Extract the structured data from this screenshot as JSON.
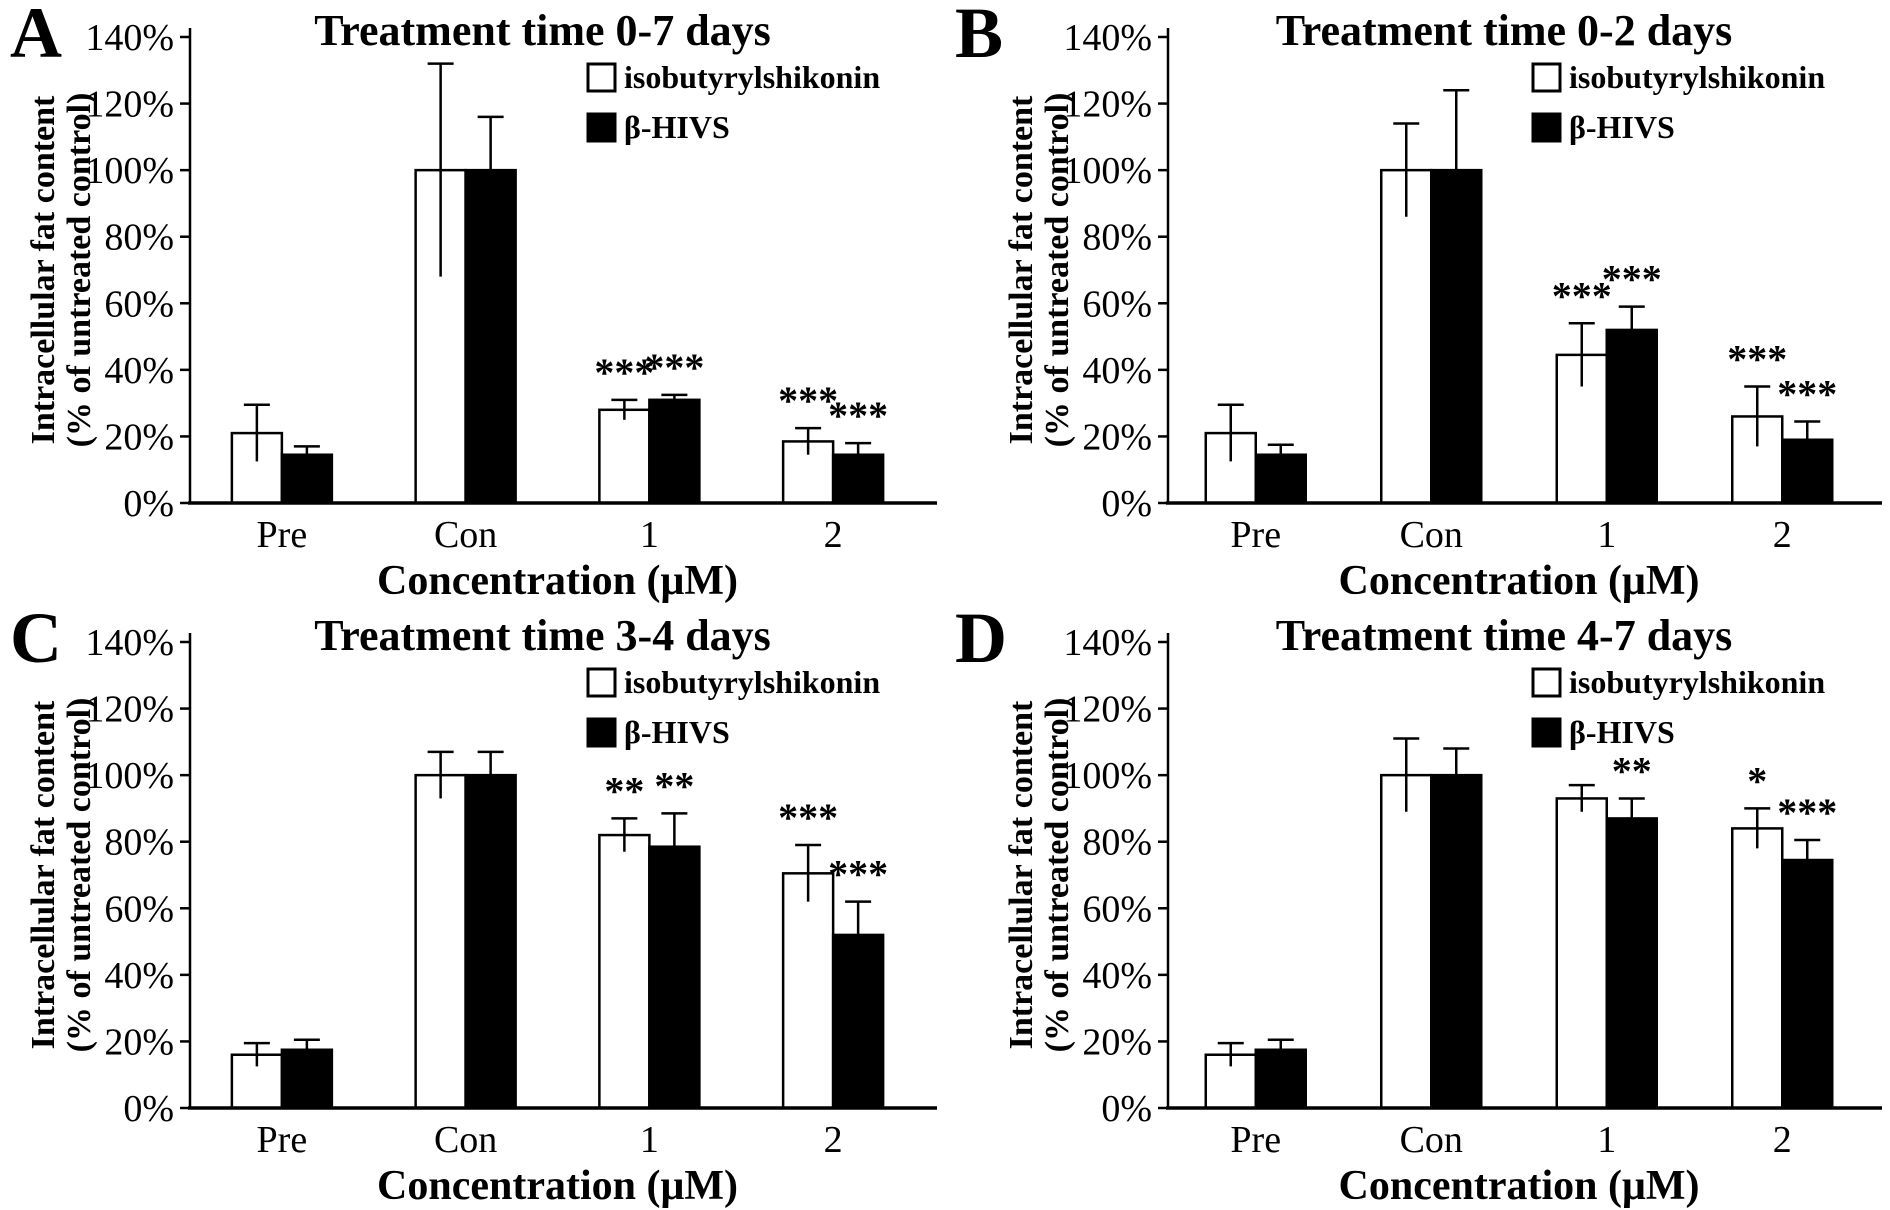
{
  "figure": {
    "ylabel_line1": "Intracellular fat content",
    "ylabel_line2": "(% of untreated control)",
    "xlabel": "Concentration (μM)",
    "background": "#ffffff",
    "ink_color": "#000000",
    "series_fills": {
      "isobutyrylshikonin": "#ffffff",
      "β-HIVS": "#000000"
    }
  },
  "chart_data": [
    {
      "panel": "A",
      "type": "bar",
      "title": "Treatment time 0-7 days",
      "categories": [
        "Pre",
        "Con",
        "1",
        "2"
      ],
      "xlabel": "Concentration (μM)",
      "ylabel": "Intracellular fat content (% of untreated control)",
      "ylim": [
        0,
        140
      ],
      "ytick_step": 20,
      "ytick_suffix": "%",
      "grid": false,
      "legend_position": "top-right",
      "series": [
        {
          "name": "isobutyrylshikonin",
          "fill": "#ffffff",
          "values": [
            21,
            100,
            28,
            18.5
          ],
          "errors": [
            8.5,
            32,
            3,
            4
          ],
          "significance": [
            "",
            "",
            "***",
            "***"
          ]
        },
        {
          "name": "β-HIVS",
          "fill": "#000000",
          "values": [
            14.5,
            100,
            31,
            14.5
          ],
          "errors": [
            2.5,
            16,
            1.5,
            3.5
          ],
          "significance": [
            "",
            "",
            "***",
            "***"
          ]
        }
      ]
    },
    {
      "panel": "B",
      "type": "bar",
      "title": "Treatment time 0-2 days",
      "categories": [
        "Pre",
        "Con",
        "1",
        "2"
      ],
      "xlabel": "Concentration (μM)",
      "ylabel": "Intracellular fat content (% of untreated control)",
      "ylim": [
        0,
        140
      ],
      "ytick_step": 20,
      "ytick_suffix": "%",
      "grid": false,
      "legend_position": "top-right",
      "series": [
        {
          "name": "isobutyrylshikonin",
          "fill": "#ffffff",
          "values": [
            21,
            100,
            44.5,
            26
          ],
          "errors": [
            8.5,
            14,
            9.5,
            9
          ],
          "significance": [
            "",
            "",
            "***",
            "***"
          ]
        },
        {
          "name": "β-HIVS",
          "fill": "#000000",
          "values": [
            14.5,
            100,
            52,
            19
          ],
          "errors": [
            3,
            24,
            7,
            5.5
          ],
          "significance": [
            "",
            "",
            "***",
            "***"
          ]
        }
      ]
    },
    {
      "panel": "C",
      "type": "bar",
      "title": "Treatment time 3-4 days",
      "categories": [
        "Pre",
        "Con",
        "1",
        "2"
      ],
      "xlabel": "Concentration (μM)",
      "ylabel": "Intracellular fat content (% of untreated control)",
      "ylim": [
        0,
        140
      ],
      "ytick_step": 20,
      "ytick_suffix": "%",
      "grid": false,
      "legend_position": "top-right",
      "series": [
        {
          "name": "isobutyrylshikonin",
          "fill": "#ffffff",
          "values": [
            16,
            100,
            82,
            70.5
          ],
          "errors": [
            3.5,
            7,
            5,
            8.5
          ],
          "significance": [
            "",
            "",
            "**",
            "***"
          ]
        },
        {
          "name": "β-HIVS",
          "fill": "#000000",
          "values": [
            17.5,
            100,
            78.5,
            52
          ],
          "errors": [
            3,
            7,
            10,
            10
          ],
          "significance": [
            "",
            "",
            "**",
            "***"
          ]
        }
      ]
    },
    {
      "panel": "D",
      "type": "bar",
      "title": "Treatment time 4-7 days",
      "categories": [
        "Pre",
        "Con",
        "1",
        "2"
      ],
      "xlabel": "Concentration (μM)",
      "ylabel": "Intracellular fat content (% of untreated control)",
      "ylim": [
        0,
        140
      ],
      "ytick_step": 20,
      "ytick_suffix": "%",
      "grid": false,
      "legend_position": "top-right",
      "series": [
        {
          "name": "isobutyrylshikonin",
          "fill": "#ffffff",
          "values": [
            16,
            100,
            93,
            84
          ],
          "errors": [
            3.5,
            11,
            4,
            6
          ],
          "significance": [
            "",
            "",
            "",
            "*"
          ]
        },
        {
          "name": "β-HIVS",
          "fill": "#000000",
          "values": [
            17.5,
            100,
            87,
            74.5
          ],
          "errors": [
            3,
            8,
            6,
            6
          ],
          "significance": [
            "",
            "",
            "**",
            "***"
          ]
        }
      ]
    }
  ]
}
